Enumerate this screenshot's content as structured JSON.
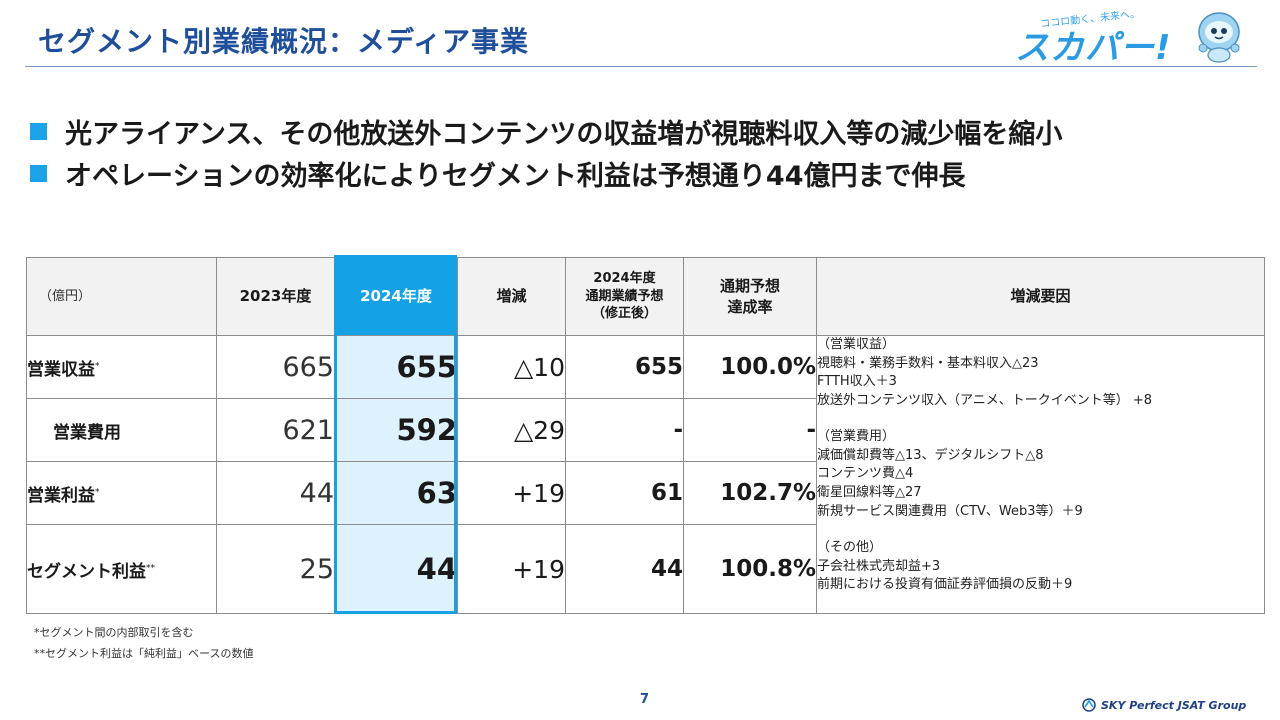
{
  "header": {
    "title": "セグメント別業績概況：メディア事業",
    "logo_tagline": "ココロ動く、未来へ。",
    "logo_text": "スカパー!"
  },
  "bullets": [
    "光アライアンス、その他放送外コンテンツの収益増が視聴料収入等の減少幅を縮小",
    "オペレーションの効率化によりセグメント利益は予想通り44億円まで伸長"
  ],
  "table": {
    "unit": "（億円）",
    "headers": {
      "fy2023": "2023年度",
      "fy2024": "2024年度",
      "change": "増減",
      "forecast_l1": "2024年度",
      "forecast_l2": "通期業績予想",
      "forecast_l3": "（修正後）",
      "rate_l1": "通期予想",
      "rate_l2": "達成率",
      "factors": "増減要因"
    },
    "rows": [
      {
        "label": "営業収益",
        "mark": "*",
        "fy2023": "665",
        "fy2024": "655",
        "change": "△10",
        "forecast": "655",
        "rate": "100.0%"
      },
      {
        "label": "営業費用",
        "mark": "",
        "fy2023": "621",
        "fy2024": "592",
        "change": "△29",
        "forecast": "-",
        "rate": "-"
      },
      {
        "label": "営業利益",
        "mark": "*",
        "fy2023": "44",
        "fy2024": "63",
        "change": "+19",
        "forecast": "61",
        "rate": "102.7%"
      },
      {
        "label": "セグメント利益",
        "mark": "**",
        "fy2023": "25",
        "fy2024": "44",
        "change": "+19",
        "forecast": "44",
        "rate": "100.8%"
      }
    ],
    "factors": [
      "（営業収益）",
      "視聴料・業務手数料・基本料収入△23",
      "FTTH収入＋3",
      "放送外コンテンツ収入（アニメ、トークイベント等） +8",
      "",
      "（営業費用）",
      "減価償却費等△13、デジタルシフト△8",
      "コンテンツ費△4",
      "衛星回線料等△27",
      "新規サービス関連費用（CTV、Web3等）＋9",
      "",
      "（その他）",
      "子会社株式売却益+3",
      "前期における投資有価証券評価損の反動＋9"
    ]
  },
  "notes": [
    "*セグメント間の内部取引を含む",
    "**セグメント利益は「純利益」ベースの数値"
  ],
  "footer": {
    "page_number": "7",
    "company": "SKY Perfect JSAT Group"
  },
  "colors": {
    "title": "#1f4e9a",
    "accent": "#14a1e5",
    "highlight_bg": "#ddf2fc",
    "header_bg": "#f2f2f2"
  }
}
